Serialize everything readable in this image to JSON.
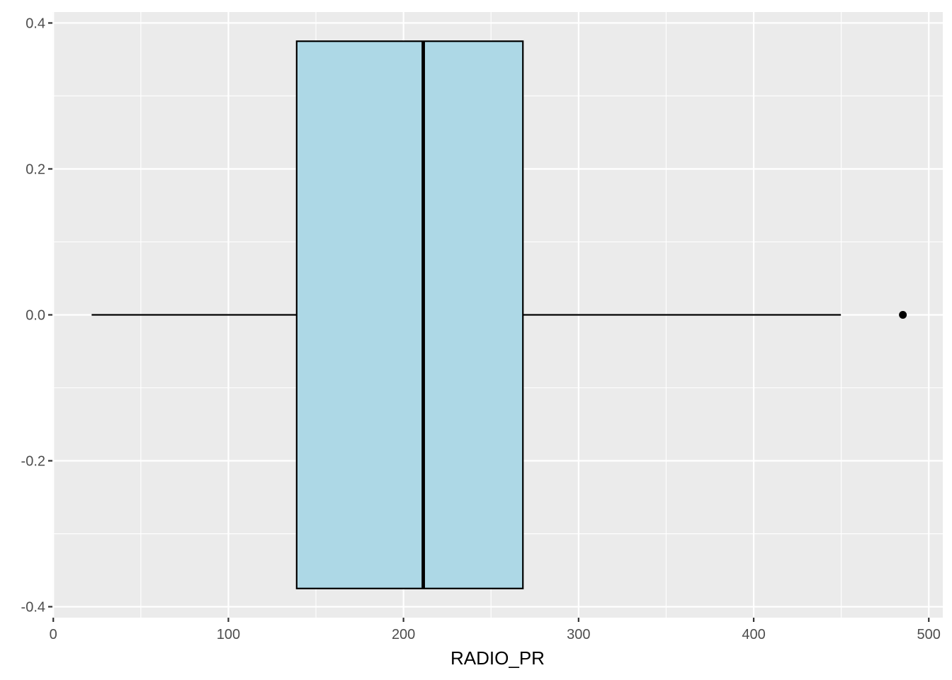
{
  "chart_data": {
    "type": "boxplot",
    "orientation": "horizontal",
    "xlabel": "RADIO_PR",
    "ylabel": "",
    "xlim": [
      -0.5,
      508
    ],
    "ylim": [
      -0.415,
      0.415
    ],
    "x_ticks": [
      0,
      100,
      200,
      300,
      400,
      500
    ],
    "x_tick_labels": [
      "0",
      "100",
      "200",
      "300",
      "400",
      "500"
    ],
    "y_ticks": [
      -0.4,
      -0.2,
      0.0,
      0.2,
      0.4
    ],
    "y_tick_labels": [
      "-0.4",
      "-0.2",
      "0.0",
      "0.2",
      "0.4"
    ],
    "box": {
      "lower_whisker": 21.9,
      "q1": 139.0,
      "median": 211.3,
      "q3": 268.2,
      "upper_whisker": 449.8,
      "box_ymin": -0.375,
      "box_ymax": 0.375,
      "y_center": 0.0
    },
    "outliers": [
      485.2
    ],
    "colors": {
      "panel_background": "#ebebeb",
      "grid": "#ffffff",
      "box_fill": "#add8e6",
      "box_outline": "#000000",
      "outlier": "#000000"
    },
    "grid": true
  }
}
